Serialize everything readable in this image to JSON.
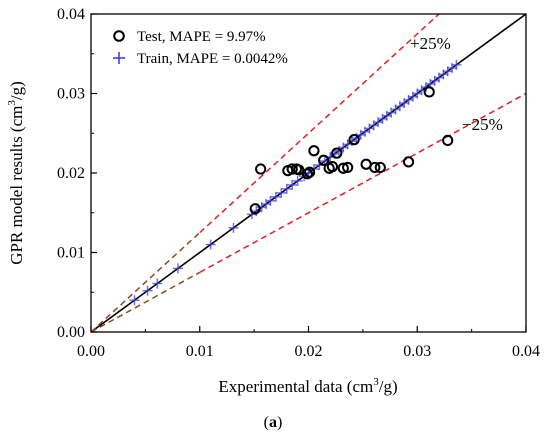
{
  "chart_data": {
    "type": "scatter",
    "xlabel": "Experimental data (cm3/g)",
    "ylabel": "GPR model results (cm3/g)",
    "xlim": [
      0.0,
      0.04
    ],
    "ylim": [
      0.0,
      0.04
    ],
    "x_ticks": [
      "0.00",
      "0.01",
      "0.02",
      "0.03",
      "0.04"
    ],
    "y_ticks": [
      "0.00",
      "0.01",
      "0.02",
      "0.03",
      "0.04"
    ],
    "grid": false,
    "legend_position": "top-left",
    "reference_lines": [
      {
        "label": "",
        "slope": 1.0,
        "style": "solid",
        "color": "#000000"
      },
      {
        "label": "+25%",
        "slope": 1.25,
        "style": "dashed",
        "color": "#e02020"
      },
      {
        "label": "−25%",
        "slope": 0.75,
        "style": "dashed",
        "color": "#e02020"
      }
    ],
    "series": [
      {
        "name": "Test, MAPE = 9.97%",
        "marker": "circle",
        "color": "#000000",
        "x": [
          0.0151,
          0.0156,
          0.0181,
          0.0185,
          0.0189,
          0.0191,
          0.0199,
          0.0201,
          0.0205,
          0.0214,
          0.0219,
          0.0222,
          0.0226,
          0.0232,
          0.0236,
          0.0242,
          0.0253,
          0.0261,
          0.0266,
          0.0292,
          0.0311,
          0.0328
        ],
        "y": [
          0.0155,
          0.0205,
          0.0203,
          0.0205,
          0.0205,
          0.0204,
          0.0199,
          0.0201,
          0.0228,
          0.0216,
          0.0206,
          0.0208,
          0.0225,
          0.0206,
          0.0207,
          0.0242,
          0.0211,
          0.0207,
          0.0207,
          0.0214,
          0.0302,
          0.0241
        ]
      },
      {
        "name": "Train, MAPE = 0.0042%",
        "marker": "plus",
        "color": "#4040e0",
        "x": [
          0.004,
          0.0052,
          0.0061,
          0.008,
          0.011,
          0.0131,
          0.0148,
          0.0152,
          0.0157,
          0.0161,
          0.0165,
          0.017,
          0.0175,
          0.018,
          0.0185,
          0.019,
          0.0196,
          0.02,
          0.0205,
          0.021,
          0.0215,
          0.022,
          0.0224,
          0.0228,
          0.0232,
          0.0236,
          0.024,
          0.0244,
          0.0248,
          0.0252,
          0.0256,
          0.026,
          0.0264,
          0.0268,
          0.0272,
          0.0276,
          0.028,
          0.0284,
          0.0288,
          0.0292,
          0.0296,
          0.03,
          0.0304,
          0.0308,
          0.0312,
          0.0316,
          0.032,
          0.0324,
          0.0328,
          0.0332,
          0.0336
        ],
        "y": [
          0.004,
          0.0052,
          0.0061,
          0.008,
          0.011,
          0.0131,
          0.0148,
          0.0152,
          0.0157,
          0.0161,
          0.0165,
          0.017,
          0.0175,
          0.018,
          0.0185,
          0.019,
          0.0196,
          0.02,
          0.0205,
          0.021,
          0.0215,
          0.022,
          0.0224,
          0.0228,
          0.0232,
          0.0236,
          0.024,
          0.0244,
          0.0248,
          0.0252,
          0.0256,
          0.026,
          0.0264,
          0.0268,
          0.0272,
          0.0276,
          0.028,
          0.0284,
          0.0288,
          0.0292,
          0.0296,
          0.03,
          0.0304,
          0.0308,
          0.0312,
          0.0316,
          0.032,
          0.0324,
          0.0328,
          0.0332,
          0.0336
        ]
      }
    ]
  },
  "caption": "(a)"
}
